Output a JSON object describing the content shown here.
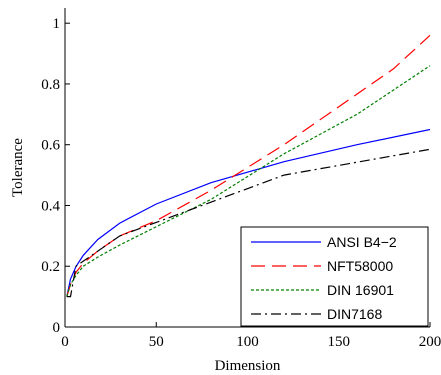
{
  "chart_data": {
    "type": "line",
    "xlabel": "Dimension",
    "ylabel": "Tolerance",
    "xlim": [
      0,
      200
    ],
    "ylim": [
      0,
      1.05
    ],
    "xticks": [
      0,
      50,
      100,
      150,
      200
    ],
    "yticks": [
      0,
      0.2,
      0.4,
      0.6,
      0.8,
      1
    ],
    "xtick_labels": [
      "0",
      "50",
      "100",
      "150",
      "200"
    ],
    "ytick_labels": [
      "0",
      "0.2",
      "0.4",
      "0.6",
      "0.8",
      "1"
    ],
    "grid": false,
    "legend_position": "bottom-right",
    "series": [
      {
        "name": "ANSI B4−2",
        "color": "#0000ff",
        "dash": "solid",
        "x": [
          1,
          3,
          6,
          10,
          18,
          30,
          50,
          80,
          120,
          160,
          200
        ],
        "y": [
          0.1,
          0.158,
          0.199,
          0.236,
          0.288,
          0.342,
          0.405,
          0.475,
          0.544,
          0.6,
          0.65
        ]
      },
      {
        "name": "NFT58000",
        "color": "#ff0000",
        "dash": "long-dash",
        "x": [
          1,
          3,
          6,
          10,
          18,
          30,
          50,
          80,
          120,
          180,
          200
        ],
        "y": [
          0.1,
          0.14,
          0.18,
          0.21,
          0.25,
          0.3,
          0.35,
          0.45,
          0.6,
          0.85,
          0.96
        ]
      },
      {
        "name": "DIN 16901",
        "color": "#008000",
        "dash": "dotted",
        "x": [
          1,
          3,
          6,
          10,
          18,
          30,
          50,
          80,
          120,
          160,
          200
        ],
        "y": [
          0.1,
          0.14,
          0.17,
          0.2,
          0.23,
          0.27,
          0.33,
          0.42,
          0.57,
          0.7,
          0.86
        ]
      },
      {
        "name": "DIN7168",
        "color": "#000000",
        "dash": "dash-dot",
        "x": [
          1,
          3,
          6,
          30,
          120,
          200
        ],
        "y": [
          0.1,
          0.1,
          0.2,
          0.3,
          0.5,
          0.585
        ]
      }
    ]
  }
}
